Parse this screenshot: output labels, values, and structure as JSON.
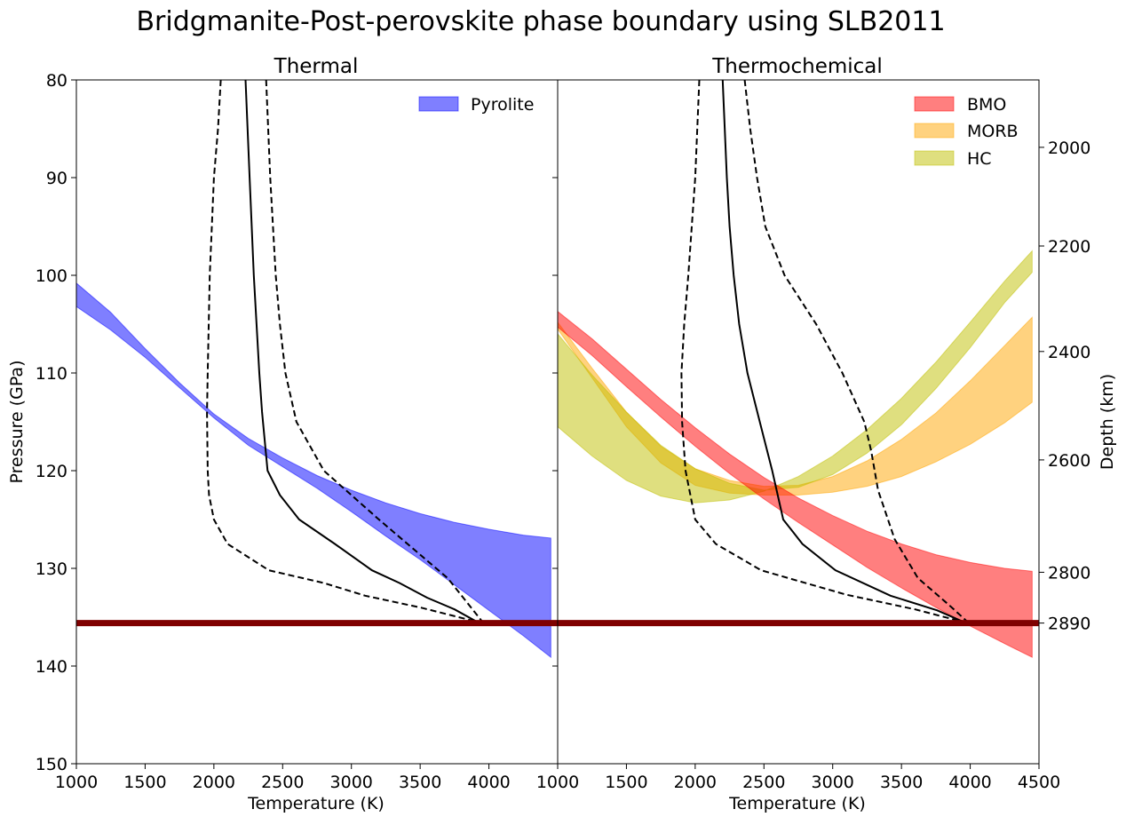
{
  "figure": {
    "title": "Bridgmanite-Post-perovskite phase boundary using SLB2011"
  },
  "chart_data": [
    {
      "type": "area",
      "title": "Thermal",
      "xlabel": "Temperature (K)",
      "ylabel": "Pressure (GPa)",
      "xlim": [
        1000,
        4500
      ],
      "ylim": [
        150,
        80
      ],
      "y_inverted": true,
      "x_ticks": [
        "1000",
        "1500",
        "2000",
        "2500",
        "3000",
        "3500",
        "4000"
      ],
      "y_ticks": [
        "80",
        "90",
        "100",
        "110",
        "120",
        "130",
        "140",
        "150"
      ],
      "legend": {
        "position": "top-right",
        "entries": [
          "Pyrolite"
        ]
      },
      "bands": [
        {
          "name": "Pyrolite",
          "color": "#0000ff",
          "alpha": 0.5,
          "x": [
            1000,
            1250,
            1500,
            1750,
            2000,
            2250,
            2500,
            2750,
            3000,
            3250,
            3500,
            3750,
            4000,
            4250,
            4450
          ],
          "p_upper": [
            100.8,
            103.8,
            107.5,
            111.0,
            114.2,
            116.7,
            118.7,
            120.5,
            122.0,
            123.3,
            124.4,
            125.3,
            126.0,
            126.6,
            126.9
          ],
          "p_lower": [
            103.2,
            105.6,
            108.4,
            111.5,
            114.6,
            117.4,
            119.6,
            121.8,
            124.2,
            126.7,
            129.1,
            131.7,
            134.3,
            136.9,
            139.1
          ]
        }
      ],
      "geotherm": {
        "color": "#000000",
        "x": [
          2230,
          2260,
          2290,
          2310,
          2330,
          2350,
          2390,
          2480,
          2620,
          2880,
          3150,
          3350,
          3550,
          3750,
          3930
        ],
        "p": [
          80,
          90,
          100,
          105,
          110,
          114,
          120,
          122.5,
          125.0,
          127.5,
          130.2,
          131.5,
          133.0,
          134.2,
          135.6
        ]
      },
      "geotherm_bounds": [
        {
          "color": "#000000",
          "style": "dashed",
          "x": [
            2050,
            2030,
            2000,
            1970,
            1955,
            1950,
            1955,
            1965,
            2000,
            2100,
            2400,
            2800,
            3100,
            3500,
            3950
          ],
          "p": [
            80,
            85,
            90,
            100,
            110,
            114,
            120,
            122.5,
            125.0,
            127.5,
            130.2,
            131.5,
            132.8,
            134.0,
            135.6
          ]
        },
        {
          "color": "#000000",
          "style": "dashed",
          "x": [
            2380,
            2410,
            2450,
            2480,
            2520,
            2600,
            2800,
            3000,
            3200,
            3450,
            3700,
            3960
          ],
          "p": [
            80,
            90,
            100,
            105,
            110,
            115,
            120,
            122.5,
            125.0,
            128.0,
            131.0,
            135.6
          ]
        }
      ],
      "horizontal_line": {
        "p": 135.6,
        "color": "#7f0000"
      }
    },
    {
      "type": "area",
      "title": "Thermochemical",
      "xlabel": "Temperature (K)",
      "ylabel": "",
      "secondary_ylabel": "Depth (km)",
      "xlim": [
        1000,
        4500
      ],
      "ylim": [
        150,
        80
      ],
      "y_inverted": true,
      "x_ticks": [
        "1000",
        "1500",
        "2000",
        "2500",
        "3000",
        "3500",
        "4000",
        "4500"
      ],
      "depth_ticks": [
        {
          "label": "2000",
          "p": 86.9
        },
        {
          "label": "2200",
          "p": 97.0
        },
        {
          "label": "2400",
          "p": 107.8
        },
        {
          "label": "2600",
          "p": 118.9
        },
        {
          "label": "2800",
          "p": 130.4
        },
        {
          "label": "2890",
          "p": 135.6
        }
      ],
      "legend": {
        "position": "top-right",
        "entries": [
          "BMO",
          "MORB",
          "HC"
        ]
      },
      "bands": [
        {
          "name": "MORB",
          "color": "#ffa500",
          "alpha": 0.5,
          "x": [
            1000,
            1250,
            1500,
            1750,
            2000,
            2250,
            2500,
            2750,
            3000,
            3250,
            3500,
            3750,
            4000,
            4250,
            4450
          ],
          "p_upper": [
            104.8,
            109.5,
            114.0,
            117.5,
            119.8,
            121.0,
            121.6,
            121.5,
            120.6,
            119.0,
            116.8,
            114.1,
            110.8,
            107.2,
            104.3
          ],
          "p_lower": [
            105.5,
            110.5,
            115.5,
            119.2,
            121.5,
            122.3,
            122.5,
            122.5,
            122.2,
            121.6,
            120.6,
            119.1,
            117.3,
            115.1,
            113.0
          ]
        },
        {
          "name": "HC",
          "color": "#bfbf00",
          "alpha": 0.5,
          "x": [
            1000,
            1250,
            1500,
            1750,
            2000,
            2250,
            2500,
            2750,
            3000,
            3250,
            3500,
            3750,
            4000,
            4250,
            4450
          ],
          "p_upper": [
            106.0,
            110.2,
            114.0,
            117.4,
            119.8,
            121.3,
            122.0,
            121.7,
            120.4,
            118.2,
            115.3,
            111.6,
            107.4,
            102.8,
            99.7
          ],
          "p_lower": [
            115.5,
            118.5,
            121.0,
            122.6,
            123.3,
            123.0,
            122.1,
            120.6,
            118.5,
            115.8,
            112.6,
            108.9,
            104.8,
            100.6,
            97.5
          ]
        },
        {
          "name": "BMO",
          "color": "#ff0000",
          "alpha": 0.5,
          "x": [
            1000,
            1250,
            1500,
            1750,
            2000,
            2250,
            2500,
            2750,
            3000,
            3250,
            3500,
            3750,
            4000,
            4250,
            4450
          ],
          "p_upper": [
            103.7,
            106.5,
            109.6,
            112.7,
            115.6,
            118.3,
            120.7,
            122.8,
            124.6,
            126.2,
            127.5,
            128.6,
            129.4,
            130.0,
            130.3
          ],
          "p_lower": [
            105.3,
            108.2,
            111.4,
            114.5,
            117.5,
            120.3,
            122.9,
            125.3,
            127.6,
            129.9,
            132.0,
            134.0,
            135.9,
            137.7,
            139.1
          ]
        }
      ],
      "geotherm": {
        "color": "#000000",
        "x": [
          2200,
          2230,
          2250,
          2280,
          2320,
          2380,
          2470,
          2560,
          2640,
          2780,
          3020,
          3420,
          3760,
          3970
        ],
        "p": [
          80,
          90,
          95,
          100,
          105,
          110,
          115,
          120,
          125.0,
          127.5,
          130.2,
          132.8,
          134.3,
          135.6
        ]
      },
      "geotherm_bounds": [
        {
          "color": "#000000",
          "style": "dashed",
          "x": [
            2030,
            2000,
            1950,
            1920,
            1900,
            1905,
            1930,
            2000,
            2150,
            2480,
            3100,
            3600,
            3980
          ],
          "p": [
            80,
            90,
            100,
            105,
            110,
            115,
            120,
            125.0,
            127.5,
            130.2,
            132.7,
            134.2,
            135.6
          ]
        },
        {
          "color": "#000000",
          "style": "dashed",
          "x": [
            2360,
            2400,
            2450,
            2510,
            2650,
            2880,
            3070,
            3230,
            3280,
            3330,
            3450,
            3620,
            3850,
            3990
          ],
          "p": [
            80,
            85,
            90,
            95,
            100,
            105,
            110,
            115,
            118,
            122,
            127,
            131,
            133.8,
            135.6
          ]
        }
      ],
      "horizontal_line": {
        "p": 135.6,
        "color": "#7f0000"
      }
    }
  ]
}
